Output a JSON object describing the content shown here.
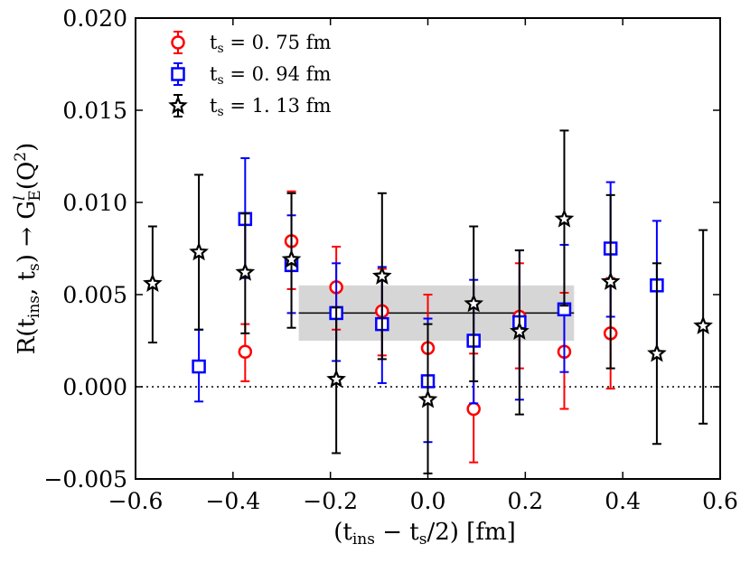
{
  "chart_data": {
    "type": "scatter",
    "title": "",
    "xlabel": "(t_ins − t_s/2) [fm]",
    "ylabel": "R(t_ins, t_s) → G_E^l(Q²)",
    "xlim": [
      -0.6,
      0.6
    ],
    "ylim": [
      -0.005,
      0.02
    ],
    "xticks": [
      -0.6,
      -0.4,
      -0.2,
      0.0,
      0.2,
      0.4,
      0.6
    ],
    "xtick_labels": [
      "−0.6",
      "−0.4",
      "−0.2",
      "0.0",
      "0.2",
      "0.4",
      "0.6"
    ],
    "yticks": [
      -0.005,
      0.0,
      0.005,
      0.01,
      0.015,
      0.02
    ],
    "ytick_labels": [
      "−0.005",
      "0.000",
      "0.005",
      "0.010",
      "0.015",
      "0.020"
    ],
    "legend_position": "top-left",
    "zero_line": {
      "y": 0.0,
      "style": "dotted"
    },
    "fit_band": {
      "x_range": [
        -0.265,
        0.3
      ],
      "value": 0.004,
      "lower": 0.0025,
      "upper": 0.0055
    },
    "series": [
      {
        "name": "t_s = 0.75 fm",
        "legend_label": "t",
        "legend_sub": "s",
        "legend_rest": " = 0. 75 fm",
        "color": "#ff0000",
        "marker": "circle",
        "points": [
          {
            "x": -0.375,
            "y": 0.0019,
            "lo": 0.0003,
            "hi": 0.0034
          },
          {
            "x": -0.28,
            "y": 0.0079,
            "lo": 0.0053,
            "hi": 0.0106
          },
          {
            "x": -0.188,
            "y": 0.0054,
            "lo": 0.0031,
            "hi": 0.0076
          },
          {
            "x": -0.094,
            "y": 0.0041,
            "lo": 0.0017,
            "hi": 0.0064
          },
          {
            "x": 0.0,
            "y": 0.0021,
            "lo": -0.0009,
            "hi": 0.005
          },
          {
            "x": 0.094,
            "y": -0.0012,
            "lo": -0.0041,
            "hi": 0.0018
          },
          {
            "x": 0.188,
            "y": 0.0038,
            "lo": 0.001,
            "hi": 0.0067
          },
          {
            "x": 0.28,
            "y": 0.0019,
            "lo": -0.0012,
            "hi": 0.0051
          },
          {
            "x": 0.375,
            "y": 0.0029,
            "lo": -0.0001,
            "hi": 0.0059
          }
        ]
      },
      {
        "name": "t_s = 0.94 fm",
        "legend_label": "t",
        "legend_sub": "s",
        "legend_rest": " = 0. 94 fm",
        "color": "#0000ff",
        "marker": "square",
        "points": [
          {
            "x": -0.47,
            "y": 0.0011,
            "lo": -0.0008,
            "hi": 0.0031
          },
          {
            "x": -0.375,
            "y": 0.0091,
            "lo": 0.0059,
            "hi": 0.0124
          },
          {
            "x": -0.28,
            "y": 0.0066,
            "lo": 0.004,
            "hi": 0.0093
          },
          {
            "x": -0.188,
            "y": 0.004,
            "lo": 0.0014,
            "hi": 0.0067
          },
          {
            "x": -0.094,
            "y": 0.0034,
            "lo": 0.0002,
            "hi": 0.0065
          },
          {
            "x": 0.0,
            "y": 0.0003,
            "lo": -0.003,
            "hi": 0.0037
          },
          {
            "x": 0.094,
            "y": 0.0025,
            "lo": -0.0009,
            "hi": 0.0058
          },
          {
            "x": 0.188,
            "y": 0.0035,
            "lo": -0.0007,
            "hi": 0.0074
          },
          {
            "x": 0.28,
            "y": 0.0042,
            "lo": 0.0008,
            "hi": 0.0077
          },
          {
            "x": 0.375,
            "y": 0.0075,
            "lo": 0.0038,
            "hi": 0.0111
          },
          {
            "x": 0.47,
            "y": 0.0055,
            "lo": 0.0019,
            "hi": 0.009
          }
        ]
      },
      {
        "name": "t_s = 1.13 fm",
        "legend_label": "t",
        "legend_sub": "s",
        "legend_rest": " = 1. 13 fm",
        "color": "#000000",
        "marker": "star",
        "points": [
          {
            "x": -0.565,
            "y": 0.0056,
            "lo": 0.0024,
            "hi": 0.0087
          },
          {
            "x": -0.47,
            "y": 0.0073,
            "lo": 0.0031,
            "hi": 0.0115
          },
          {
            "x": -0.375,
            "y": 0.0062,
            "lo": 0.0029,
            "hi": 0.0094
          },
          {
            "x": -0.28,
            "y": 0.0069,
            "lo": 0.0032,
            "hi": 0.0105
          },
          {
            "x": -0.188,
            "y": 0.0004,
            "lo": -0.0036,
            "hi": 0.0043
          },
          {
            "x": -0.094,
            "y": 0.006,
            "lo": 0.0015,
            "hi": 0.0105
          },
          {
            "x": 0.0,
            "y": -0.0007,
            "lo": -0.0047,
            "hi": 0.0034
          },
          {
            "x": 0.094,
            "y": 0.0045,
            "lo": 0.0003,
            "hi": 0.0087
          },
          {
            "x": 0.188,
            "y": 0.003,
            "lo": -0.0015,
            "hi": 0.0074
          },
          {
            "x": 0.28,
            "y": 0.0091,
            "lo": 0.0044,
            "hi": 0.0139
          },
          {
            "x": 0.375,
            "y": 0.0057,
            "lo": 0.001,
            "hi": 0.0104
          },
          {
            "x": 0.47,
            "y": 0.0018,
            "lo": -0.0031,
            "hi": 0.0067
          },
          {
            "x": 0.565,
            "y": 0.0033,
            "lo": -0.002,
            "hi": 0.0085
          }
        ]
      }
    ]
  }
}
